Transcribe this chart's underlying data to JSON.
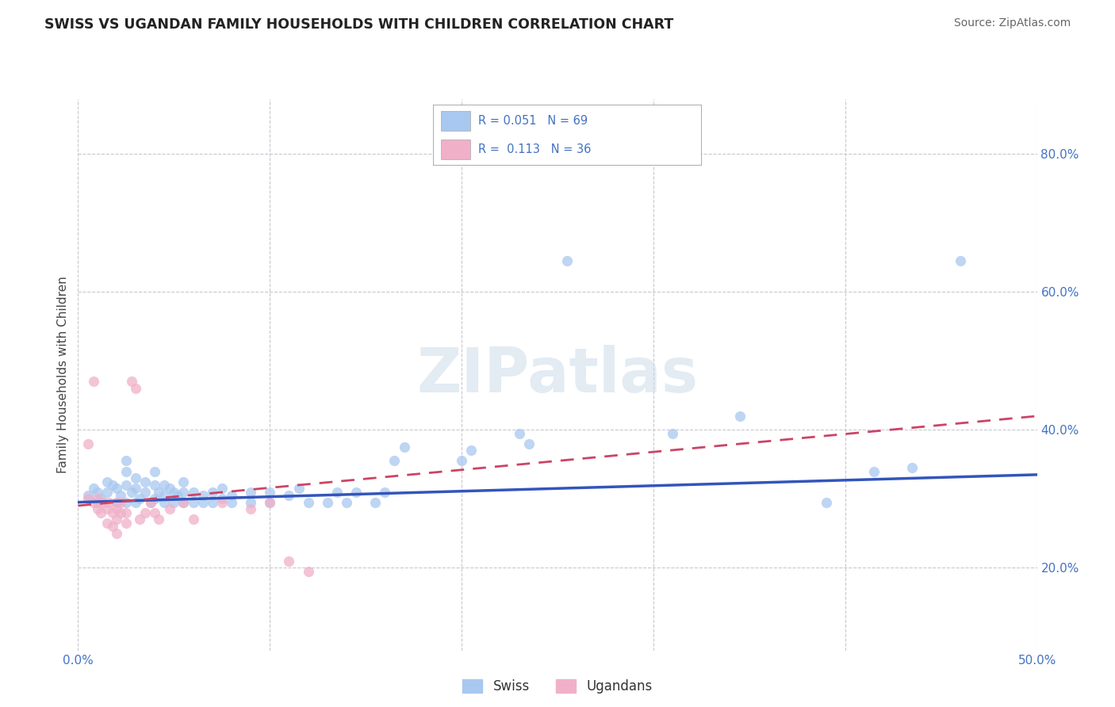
{
  "title": "SWISS VS UGANDAN FAMILY HOUSEHOLDS WITH CHILDREN CORRELATION CHART",
  "source": "Source: ZipAtlas.com",
  "ylabel": "Family Households with Children",
  "xlim": [
    0.0,
    0.5
  ],
  "ylim": [
    0.08,
    0.88
  ],
  "x_ticks": [
    0.0,
    0.1,
    0.2,
    0.3,
    0.4,
    0.5
  ],
  "x_tick_labels": [
    "0.0%",
    "",
    "",
    "",
    "",
    "50.0%"
  ],
  "y_ticks": [
    0.2,
    0.4,
    0.6,
    0.8
  ],
  "y_tick_labels": [
    "20.0%",
    "40.0%",
    "60.0%",
    "80.0%"
  ],
  "grid_color": "#c8c8d0",
  "background_color": "#ffffff",
  "watermark": "ZIPatlas",
  "swiss_color": "#a8c8f0",
  "ugandan_color": "#f0b0c8",
  "swiss_line_color": "#3355bb",
  "ugandan_line_color": "#cc4466",
  "swiss_points": [
    [
      0.005,
      0.305
    ],
    [
      0.008,
      0.315
    ],
    [
      0.01,
      0.295
    ],
    [
      0.01,
      0.31
    ],
    [
      0.012,
      0.3
    ],
    [
      0.015,
      0.31
    ],
    [
      0.015,
      0.325
    ],
    [
      0.018,
      0.32
    ],
    [
      0.02,
      0.295
    ],
    [
      0.02,
      0.315
    ],
    [
      0.022,
      0.305
    ],
    [
      0.025,
      0.295
    ],
    [
      0.025,
      0.32
    ],
    [
      0.025,
      0.34
    ],
    [
      0.025,
      0.355
    ],
    [
      0.028,
      0.31
    ],
    [
      0.03,
      0.295
    ],
    [
      0.03,
      0.315
    ],
    [
      0.03,
      0.33
    ],
    [
      0.032,
      0.3
    ],
    [
      0.035,
      0.31
    ],
    [
      0.035,
      0.325
    ],
    [
      0.038,
      0.295
    ],
    [
      0.04,
      0.3
    ],
    [
      0.04,
      0.32
    ],
    [
      0.04,
      0.34
    ],
    [
      0.042,
      0.31
    ],
    [
      0.045,
      0.295
    ],
    [
      0.045,
      0.305
    ],
    [
      0.045,
      0.32
    ],
    [
      0.048,
      0.315
    ],
    [
      0.05,
      0.295
    ],
    [
      0.05,
      0.31
    ],
    [
      0.052,
      0.305
    ],
    [
      0.055,
      0.295
    ],
    [
      0.055,
      0.31
    ],
    [
      0.055,
      0.325
    ],
    [
      0.06,
      0.295
    ],
    [
      0.06,
      0.31
    ],
    [
      0.065,
      0.295
    ],
    [
      0.065,
      0.305
    ],
    [
      0.07,
      0.295
    ],
    [
      0.07,
      0.31
    ],
    [
      0.075,
      0.3
    ],
    [
      0.075,
      0.315
    ],
    [
      0.08,
      0.295
    ],
    [
      0.08,
      0.305
    ],
    [
      0.09,
      0.295
    ],
    [
      0.09,
      0.31
    ],
    [
      0.1,
      0.295
    ],
    [
      0.1,
      0.31
    ],
    [
      0.11,
      0.305
    ],
    [
      0.115,
      0.315
    ],
    [
      0.12,
      0.295
    ],
    [
      0.13,
      0.295
    ],
    [
      0.135,
      0.31
    ],
    [
      0.14,
      0.295
    ],
    [
      0.145,
      0.31
    ],
    [
      0.155,
      0.295
    ],
    [
      0.16,
      0.31
    ],
    [
      0.165,
      0.355
    ],
    [
      0.17,
      0.375
    ],
    [
      0.2,
      0.355
    ],
    [
      0.205,
      0.37
    ],
    [
      0.23,
      0.395
    ],
    [
      0.235,
      0.38
    ],
    [
      0.255,
      0.645
    ],
    [
      0.31,
      0.395
    ],
    [
      0.345,
      0.42
    ],
    [
      0.39,
      0.295
    ],
    [
      0.415,
      0.34
    ],
    [
      0.435,
      0.345
    ],
    [
      0.46,
      0.645
    ]
  ],
  "ugandan_points": [
    [
      0.005,
      0.3
    ],
    [
      0.008,
      0.295
    ],
    [
      0.01,
      0.285
    ],
    [
      0.01,
      0.3
    ],
    [
      0.012,
      0.28
    ],
    [
      0.013,
      0.295
    ],
    [
      0.015,
      0.265
    ],
    [
      0.015,
      0.285
    ],
    [
      0.016,
      0.295
    ],
    [
      0.018,
      0.26
    ],
    [
      0.018,
      0.28
    ],
    [
      0.02,
      0.25
    ],
    [
      0.02,
      0.27
    ],
    [
      0.02,
      0.285
    ],
    [
      0.02,
      0.295
    ],
    [
      0.022,
      0.28
    ],
    [
      0.022,
      0.295
    ],
    [
      0.025,
      0.265
    ],
    [
      0.025,
      0.28
    ],
    [
      0.028,
      0.47
    ],
    [
      0.03,
      0.46
    ],
    [
      0.032,
      0.27
    ],
    [
      0.035,
      0.28
    ],
    [
      0.038,
      0.295
    ],
    [
      0.04,
      0.28
    ],
    [
      0.042,
      0.27
    ],
    [
      0.048,
      0.285
    ],
    [
      0.055,
      0.295
    ],
    [
      0.06,
      0.27
    ],
    [
      0.075,
      0.295
    ],
    [
      0.09,
      0.285
    ],
    [
      0.1,
      0.295
    ],
    [
      0.11,
      0.21
    ],
    [
      0.12,
      0.195
    ],
    [
      0.005,
      0.38
    ],
    [
      0.008,
      0.47
    ]
  ]
}
